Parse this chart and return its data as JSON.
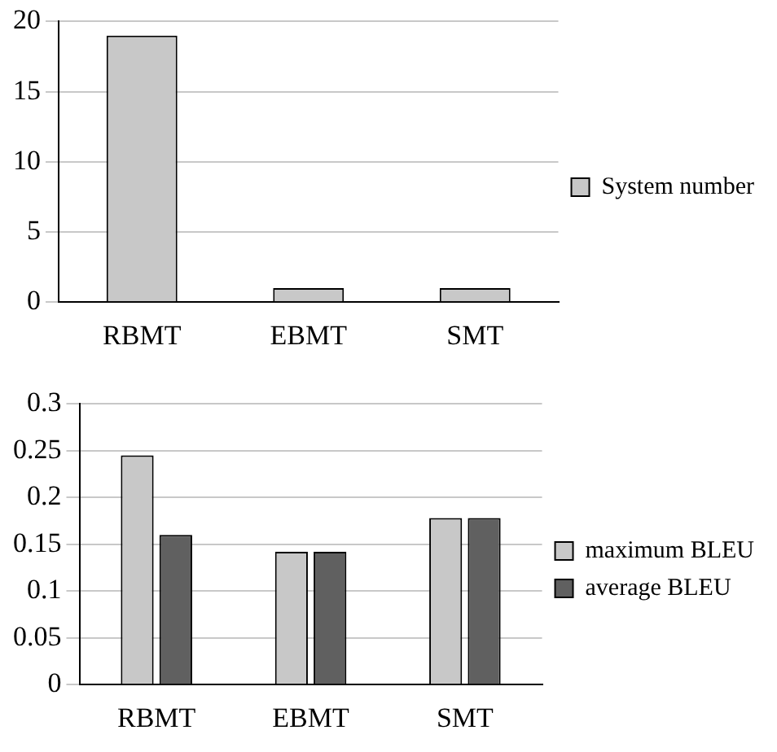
{
  "chart_data": [
    {
      "type": "bar",
      "categories": [
        "RBMT",
        "EBMT",
        "SMT"
      ],
      "series": [
        {
          "name": "System number",
          "color": "#c8c8c8",
          "values": [
            19,
            1,
            1
          ]
        }
      ],
      "ylim": [
        0,
        20
      ],
      "yticks": [
        0,
        5,
        10,
        15,
        20
      ],
      "grid": "y",
      "legend": "right"
    },
    {
      "type": "bar",
      "categories": [
        "RBMT",
        "EBMT",
        "SMT"
      ],
      "series": [
        {
          "name": "maximum BLEU",
          "color": "#c8c8c8",
          "values": [
            0.245,
            0.142,
            0.178
          ]
        },
        {
          "name": "average BLEU",
          "color": "#606060",
          "values": [
            0.16,
            0.142,
            0.178
          ]
        }
      ],
      "ylim": [
        0,
        0.3
      ],
      "yticks": [
        0,
        0.05,
        0.1,
        0.15,
        0.2,
        0.25,
        0.3
      ],
      "grid": "y",
      "legend": "right"
    }
  ]
}
